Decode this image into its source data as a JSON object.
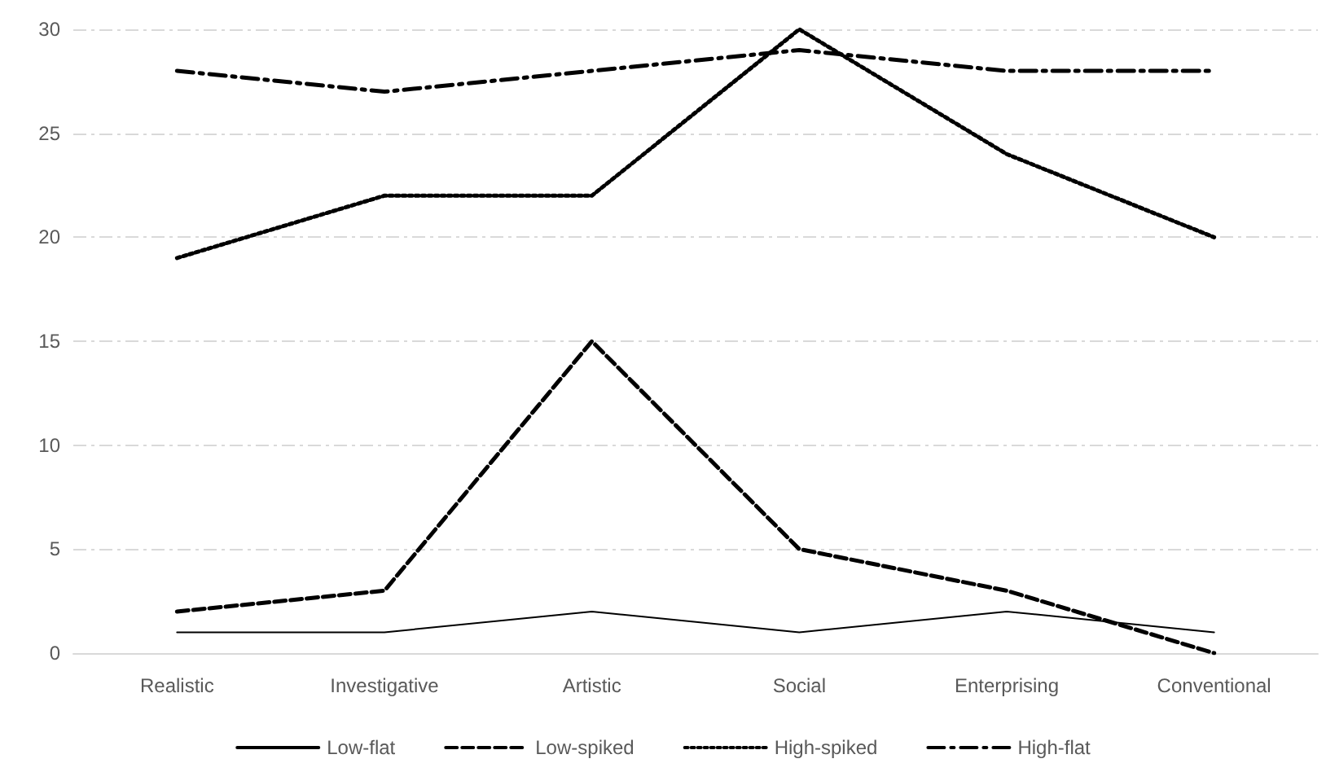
{
  "chart_data": {
    "type": "line",
    "categories": [
      "Realistic",
      "Investigative",
      "Artistic",
      "Social",
      "Enterprising",
      "Conventional"
    ],
    "series": [
      {
        "name": "Low-flat",
        "color": "#000000",
        "line_style": "solid",
        "values": [
          1,
          1,
          2,
          1,
          2,
          1
        ]
      },
      {
        "name": "Low-spiked",
        "color": "#000000",
        "line_style": "dashed",
        "values": [
          2,
          3,
          15,
          5,
          3,
          0
        ]
      },
      {
        "name": "High-spiked",
        "color": "#000000",
        "line_style": "dotted",
        "values": [
          19,
          22,
          22,
          30,
          24,
          20
        ]
      },
      {
        "name": "High-flat",
        "color": "#000000",
        "line_style": "dashdot",
        "values": [
          28,
          27,
          28,
          29,
          28,
          28
        ]
      }
    ],
    "ylim": [
      0,
      30
    ],
    "yticks": [
      0,
      5,
      10,
      15,
      20,
      25,
      30
    ],
    "grid": "y",
    "legend": "bottom",
    "marker": "none"
  }
}
